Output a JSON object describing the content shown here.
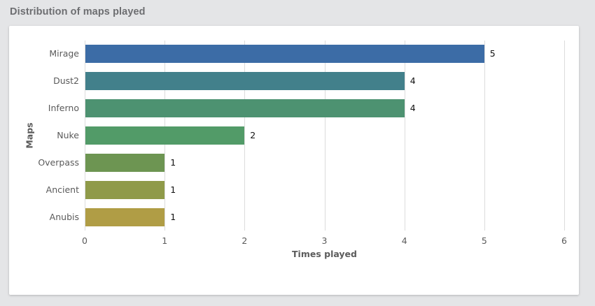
{
  "page": {
    "background_color": "#e4e5e7",
    "card_color": "#ffffff"
  },
  "header": {
    "title": "Distribution of maps played",
    "title_color": "#6d6e71"
  },
  "chart_data": {
    "type": "bar",
    "orientation": "horizontal",
    "categories": [
      "Mirage",
      "Dust2",
      "Inferno",
      "Nuke",
      "Overpass",
      "Ancient",
      "Anubis"
    ],
    "values": [
      5,
      4,
      4,
      2,
      1,
      1,
      1
    ],
    "value_labels": [
      "5",
      "4",
      "4",
      "2",
      "1",
      "1",
      "1"
    ],
    "bar_colors": [
      "#3c6ca6",
      "#42808b",
      "#4d9271",
      "#529b68",
      "#6d9552",
      "#8f9a49",
      "#b09d45"
    ],
    "xlabel": "Times played",
    "ylabel": "Maps",
    "xlim": [
      0,
      6
    ],
    "xticks": [
      "0",
      "1",
      "2",
      "3",
      "4",
      "5",
      "6"
    ],
    "grid": "vertical gridlines at each x tick",
    "gridline_color": "#dcdcdc",
    "label_color": "#5a5a5a",
    "value_label_color": "#111111",
    "legend": "none"
  }
}
